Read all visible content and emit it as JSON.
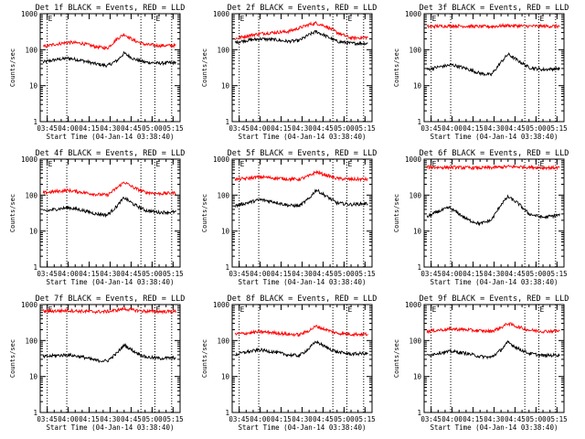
{
  "figure": {
    "background": "#ffffff",
    "axis_color": "#000000",
    "events_color": "#000000",
    "lld_color": "#ff0000"
  },
  "chart_data": [
    {
      "type": "line",
      "title": "Det 1f BLACK = Events, RED = LLD",
      "xlabel": "Start Time (04-Jan-14 03:38:40)",
      "ylabel": "Counts/sec",
      "yscale": "log",
      "ylim": [
        1,
        1000
      ],
      "xticks": [
        "03:45",
        "04:00",
        "04:15",
        "04:30",
        "04:45",
        "05:00",
        "05:15"
      ],
      "ytick_labels": [
        "1",
        "10",
        "100",
        "1000"
      ],
      "markers": [
        {
          "x": "03:45",
          "label": "E"
        },
        {
          "x": "03:59"
        },
        {
          "x": "04:52"
        },
        {
          "x": "05:02",
          "label": "E"
        },
        {
          "x": "05:14"
        }
      ],
      "series": [
        {
          "name": "Events",
          "color": "#000000",
          "x": [
            "03:42",
            "03:50",
            "04:00",
            "04:10",
            "04:20",
            "04:28",
            "04:35",
            "04:40",
            "04:47",
            "04:55",
            "05:05",
            "05:17"
          ],
          "values": [
            45,
            52,
            58,
            50,
            40,
            36,
            50,
            80,
            55,
            45,
            42,
            44
          ]
        },
        {
          "name": "LLD",
          "color": "#ff0000",
          "x": [
            "03:42",
            "03:50",
            "04:00",
            "04:10",
            "04:20",
            "04:28",
            "04:35",
            "04:40",
            "04:47",
            "04:55",
            "05:05",
            "05:17"
          ],
          "values": [
            120,
            140,
            160,
            150,
            120,
            110,
            200,
            270,
            180,
            140,
            130,
            130
          ]
        }
      ]
    },
    {
      "type": "line",
      "title": "Det 2f BLACK = Events, RED = LLD",
      "xlabel": "Start Time (04-Jan-14 03:38:40)",
      "ylabel": "Counts/sec",
      "yscale": "log",
      "ylim": [
        1,
        1000
      ],
      "xticks": [
        "03:45",
        "04:00",
        "04:15",
        "04:30",
        "04:45",
        "05:00",
        "05:15"
      ],
      "ytick_labels": [
        "1",
        "10",
        "100",
        "1000"
      ],
      "markers": [
        {
          "x": "03:45",
          "label": "E"
        },
        {
          "x": "03:59"
        },
        {
          "x": "04:52"
        },
        {
          "x": "05:02",
          "label": "E"
        },
        {
          "x": "05:14"
        }
      ],
      "series": [
        {
          "name": "Events",
          "color": "#000000",
          "x": [
            "03:42",
            "03:50",
            "04:00",
            "04:10",
            "04:20",
            "04:28",
            "04:35",
            "04:40",
            "04:47",
            "04:55",
            "05:05",
            "05:17"
          ],
          "values": [
            160,
            180,
            200,
            190,
            170,
            180,
            260,
            320,
            240,
            170,
            150,
            150
          ]
        },
        {
          "name": "LLD",
          "color": "#ff0000",
          "x": [
            "03:42",
            "03:50",
            "04:00",
            "04:10",
            "04:20",
            "04:28",
            "04:35",
            "04:40",
            "04:47",
            "04:55",
            "05:05",
            "05:17"
          ],
          "values": [
            200,
            240,
            280,
            300,
            320,
            400,
            500,
            550,
            450,
            300,
            210,
            220
          ]
        }
      ]
    },
    {
      "type": "line",
      "title": "Det 3f BLACK = Events, RED = LLD",
      "xlabel": "Start Time (04-Jan-14 03:38:40)",
      "ylabel": "Counts/sec",
      "yscale": "log",
      "ylim": [
        1,
        1000
      ],
      "xticks": [
        "03:45",
        "04:00",
        "04:15",
        "04:30",
        "04:45",
        "05:00",
        "05:15"
      ],
      "ytick_labels": [
        "1",
        "10",
        "100",
        "1000"
      ],
      "markers": [
        {
          "x": "03:45",
          "label": "E"
        },
        {
          "x": "03:59"
        },
        {
          "x": "04:52"
        },
        {
          "x": "05:02",
          "label": "E"
        },
        {
          "x": "05:14"
        }
      ],
      "series": [
        {
          "name": "Events",
          "color": "#000000",
          "x": [
            "03:42",
            "03:50",
            "04:00",
            "04:10",
            "04:20",
            "04:28",
            "04:35",
            "04:40",
            "04:47",
            "04:55",
            "05:05",
            "05:17"
          ],
          "values": [
            28,
            33,
            38,
            30,
            22,
            20,
            45,
            75,
            50,
            32,
            28,
            30
          ]
        },
        {
          "name": "LLD",
          "color": "#ff0000",
          "x": [
            "03:42",
            "03:50",
            "04:00",
            "04:10",
            "04:20",
            "04:28",
            "04:35",
            "04:40",
            "04:47",
            "04:55",
            "05:05",
            "05:17"
          ],
          "values": [
            440,
            450,
            460,
            450,
            440,
            440,
            460,
            470,
            460,
            450,
            450,
            450
          ]
        }
      ]
    },
    {
      "type": "line",
      "title": "Det 4f BLACK = Events, RED = LLD",
      "xlabel": "Start Time (04-Jan-14 03:38:40)",
      "ylabel": "Counts/sec",
      "yscale": "log",
      "ylim": [
        1,
        1000
      ],
      "xticks": [
        "03:45",
        "04:00",
        "04:15",
        "04:30",
        "04:45",
        "05:00",
        "05:15"
      ],
      "ytick_labels": [
        "1",
        "10",
        "100",
        "1000"
      ],
      "markers": [
        {
          "x": "03:45",
          "label": "E"
        },
        {
          "x": "03:59"
        },
        {
          "x": "04:52"
        },
        {
          "x": "05:02",
          "label": "E"
        },
        {
          "x": "05:14"
        }
      ],
      "series": [
        {
          "name": "Events",
          "color": "#000000",
          "x": [
            "03:42",
            "03:50",
            "04:00",
            "04:10",
            "04:20",
            "04:28",
            "04:35",
            "04:40",
            "04:47",
            "04:55",
            "05:05",
            "05:17"
          ],
          "values": [
            35,
            40,
            45,
            38,
            30,
            28,
            50,
            85,
            55,
            38,
            33,
            34
          ]
        },
        {
          "name": "LLD",
          "color": "#ff0000",
          "x": [
            "03:42",
            "03:50",
            "04:00",
            "04:10",
            "04:20",
            "04:28",
            "04:35",
            "04:40",
            "04:47",
            "04:55",
            "05:05",
            "05:17"
          ],
          "values": [
            115,
            125,
            135,
            120,
            105,
            100,
            160,
            230,
            160,
            120,
            110,
            115
          ]
        }
      ]
    },
    {
      "type": "line",
      "title": "Det 5f BLACK = Events, RED = LLD",
      "xlabel": "Start Time (04-Jan-14 03:38:40)",
      "ylabel": "Counts/sec",
      "yscale": "log",
      "ylim": [
        1,
        1000
      ],
      "xticks": [
        "03:45",
        "04:00",
        "04:15",
        "04:30",
        "04:45",
        "05:00",
        "05:15"
      ],
      "ytick_labels": [
        "1",
        "10",
        "100",
        "1000"
      ],
      "markers": [
        {
          "x": "03:45",
          "label": "E"
        },
        {
          "x": "03:59"
        },
        {
          "x": "04:52"
        },
        {
          "x": "05:02",
          "label": "E"
        },
        {
          "x": "05:14"
        }
      ],
      "series": [
        {
          "name": "Events",
          "color": "#000000",
          "x": [
            "03:42",
            "03:50",
            "04:00",
            "04:10",
            "04:20",
            "04:28",
            "04:35",
            "04:40",
            "04:47",
            "04:55",
            "05:05",
            "05:17"
          ],
          "values": [
            50,
            60,
            75,
            65,
            52,
            50,
            80,
            140,
            95,
            60,
            55,
            58
          ]
        },
        {
          "name": "LLD",
          "color": "#ff0000",
          "x": [
            "03:42",
            "03:50",
            "04:00",
            "04:10",
            "04:20",
            "04:28",
            "04:35",
            "04:40",
            "04:47",
            "04:55",
            "05:05",
            "05:17"
          ],
          "values": [
            270,
            290,
            320,
            300,
            280,
            275,
            340,
            440,
            360,
            290,
            275,
            275
          ]
        }
      ]
    },
    {
      "type": "line",
      "title": "Det 6f BLACK = Events, RED = LLD",
      "xlabel": "Start Time (04-Jan-14 03:38:40)",
      "ylabel": "Counts/sec",
      "yscale": "log",
      "ylim": [
        1,
        1000
      ],
      "xticks": [
        "03:45",
        "04:00",
        "04:15",
        "04:30",
        "04:45",
        "05:00",
        "05:15"
      ],
      "ytick_labels": [
        "1",
        "10",
        "100",
        "1000"
      ],
      "markers": [
        {
          "x": "03:45",
          "label": "E"
        },
        {
          "x": "03:59"
        },
        {
          "x": "04:52"
        },
        {
          "x": "05:02",
          "label": "E"
        },
        {
          "x": "05:14"
        }
      ],
      "series": [
        {
          "name": "Events",
          "color": "#000000",
          "x": [
            "03:42",
            "03:50",
            "03:58",
            "04:05",
            "04:12",
            "04:20",
            "04:28",
            "04:35",
            "04:40",
            "04:47",
            "04:55",
            "05:05",
            "05:17"
          ],
          "values": [
            25,
            35,
            45,
            30,
            20,
            16,
            20,
            55,
            90,
            60,
            30,
            24,
            28
          ]
        },
        {
          "name": "LLD",
          "color": "#ff0000",
          "x": [
            "03:42",
            "03:50",
            "04:00",
            "04:10",
            "04:20",
            "04:28",
            "04:35",
            "04:40",
            "04:47",
            "04:55",
            "05:05",
            "05:17"
          ],
          "values": [
            600,
            590,
            590,
            580,
            570,
            580,
            600,
            620,
            610,
            600,
            580,
            580
          ]
        }
      ]
    },
    {
      "type": "line",
      "title": "Det 7f BLACK = Events, RED = LLD",
      "xlabel": "Start Time (04-Jan-14 03:38:40)",
      "ylabel": "Counts/sec",
      "yscale": "log",
      "ylim": [
        1,
        1000
      ],
      "xticks": [
        "03:45",
        "04:00",
        "04:15",
        "04:30",
        "04:45",
        "05:00",
        "05:15"
      ],
      "ytick_labels": [
        "1",
        "10",
        "100",
        "1000"
      ],
      "markers": [
        {
          "x": "03:45",
          "label": "E"
        },
        {
          "x": "03:59"
        },
        {
          "x": "04:52"
        },
        {
          "x": "05:02",
          "label": "E"
        },
        {
          "x": "05:14"
        }
      ],
      "series": [
        {
          "name": "Events",
          "color": "#000000",
          "x": [
            "03:42",
            "03:50",
            "04:00",
            "04:10",
            "04:20",
            "04:28",
            "04:35",
            "04:40",
            "04:47",
            "04:55",
            "05:05",
            "05:17"
          ],
          "values": [
            35,
            38,
            40,
            35,
            28,
            27,
            45,
            75,
            50,
            35,
            32,
            33
          ]
        },
        {
          "name": "LLD",
          "color": "#ff0000",
          "x": [
            "03:42",
            "03:50",
            "04:00",
            "04:10",
            "04:20",
            "04:28",
            "04:35",
            "04:40",
            "04:47",
            "04:55",
            "05:05",
            "05:17"
          ],
          "values": [
            650,
            660,
            680,
            650,
            630,
            640,
            700,
            760,
            700,
            650,
            640,
            640
          ]
        }
      ]
    },
    {
      "type": "line",
      "title": "Det 8f BLACK = Events, RED = LLD",
      "xlabel": "Start Time (04-Jan-14 03:38:40)",
      "ylabel": "Counts/sec",
      "yscale": "log",
      "ylim": [
        1,
        1000
      ],
      "xticks": [
        "03:45",
        "04:00",
        "04:15",
        "04:30",
        "04:45",
        "05:00",
        "05:15"
      ],
      "ytick_labels": [
        "1",
        "10",
        "100",
        "1000"
      ],
      "markers": [
        {
          "x": "03:45",
          "label": "E"
        },
        {
          "x": "03:59"
        },
        {
          "x": "04:52"
        },
        {
          "x": "05:02",
          "label": "E"
        },
        {
          "x": "05:14"
        }
      ],
      "series": [
        {
          "name": "Events",
          "color": "#000000",
          "x": [
            "03:42",
            "03:50",
            "04:00",
            "04:10",
            "04:20",
            "04:28",
            "04:35",
            "04:40",
            "04:47",
            "04:55",
            "05:05",
            "05:17"
          ],
          "values": [
            40,
            48,
            55,
            48,
            40,
            38,
            60,
            95,
            65,
            48,
            42,
            44
          ]
        },
        {
          "name": "LLD",
          "color": "#ff0000",
          "x": [
            "03:42",
            "03:50",
            "04:00",
            "04:10",
            "04:20",
            "04:28",
            "04:35",
            "04:40",
            "04:47",
            "04:55",
            "05:05",
            "05:17"
          ],
          "values": [
            150,
            160,
            175,
            165,
            150,
            145,
            190,
            250,
            200,
            160,
            150,
            150
          ]
        }
      ]
    },
    {
      "type": "line",
      "title": "Det 9f BLACK = Events, RED = LLD",
      "xlabel": "Start Time (04-Jan-14 03:38:40)",
      "ylabel": "Counts/sec",
      "yscale": "log",
      "ylim": [
        1,
        1000
      ],
      "xticks": [
        "03:45",
        "04:00",
        "04:15",
        "04:30",
        "04:45",
        "05:00",
        "05:15"
      ],
      "ytick_labels": [
        "1",
        "10",
        "100",
        "1000"
      ],
      "markers": [
        {
          "x": "03:45",
          "label": "E"
        },
        {
          "x": "03:59"
        },
        {
          "x": "04:52"
        },
        {
          "x": "05:02",
          "label": "E"
        },
        {
          "x": "05:14"
        }
      ],
      "series": [
        {
          "name": "Events",
          "color": "#000000",
          "x": [
            "03:42",
            "03:50",
            "04:00",
            "04:10",
            "04:20",
            "04:28",
            "04:35",
            "04:40",
            "04:47",
            "04:55",
            "05:05",
            "05:17"
          ],
          "values": [
            38,
            45,
            50,
            44,
            36,
            34,
            55,
            90,
            60,
            44,
            38,
            40
          ]
        },
        {
          "name": "LLD",
          "color": "#ff0000",
          "x": [
            "03:42",
            "03:50",
            "04:00",
            "04:10",
            "04:20",
            "04:28",
            "04:35",
            "04:40",
            "04:47",
            "04:55",
            "05:05",
            "05:17"
          ],
          "values": [
            180,
            195,
            210,
            200,
            185,
            180,
            230,
            300,
            240,
            195,
            180,
            185
          ]
        }
      ]
    }
  ]
}
